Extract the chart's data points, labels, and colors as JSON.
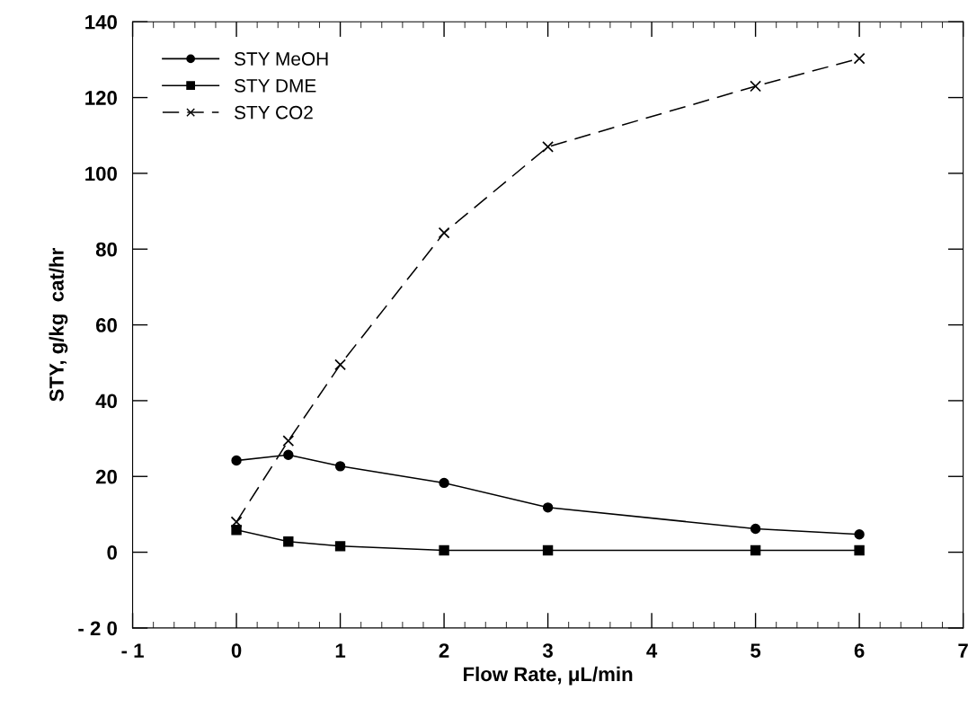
{
  "chart_data": {
    "type": "line",
    "xlabel": "Flow Rate, μL/min",
    "ylabel": "STY, g/kg  cat/hr",
    "xlim": [
      -1,
      7
    ],
    "xticks": [
      {
        "value": -1,
        "label": "- 1"
      },
      0,
      1,
      2,
      3,
      4,
      5,
      6,
      7
    ],
    "ylim": [
      -20,
      140
    ],
    "yticks": [
      {
        "value": -20,
        "label": "- 2 0"
      },
      0,
      20,
      40,
      60,
      80,
      100,
      120,
      140
    ],
    "grid": false,
    "legend": "top left",
    "series": [
      {
        "name": "STY MeOH",
        "color": "#000000",
        "marker": "circle",
        "line_style": "solid",
        "x": [
          0,
          0.5,
          1,
          2,
          3,
          5,
          6
        ],
        "values": [
          24.2,
          25.7,
          22.7,
          18.3,
          11.8,
          6.2,
          4.7
        ]
      },
      {
        "name": "STY DME",
        "color": "#000000",
        "marker": "square",
        "line_style": "solid",
        "x": [
          0,
          0.5,
          1,
          2,
          3,
          5,
          6
        ],
        "values": [
          5.9,
          2.8,
          1.6,
          0.5,
          0.5,
          0.5,
          0.5
        ]
      },
      {
        "name": "STY CO2",
        "color": "#000000",
        "marker": "cross",
        "line_style": "dashed",
        "x": [
          0,
          0.5,
          1,
          2,
          3,
          5,
          6
        ],
        "values": [
          8.0,
          29.4,
          49.5,
          84.3,
          107,
          123,
          130.3
        ]
      }
    ]
  }
}
